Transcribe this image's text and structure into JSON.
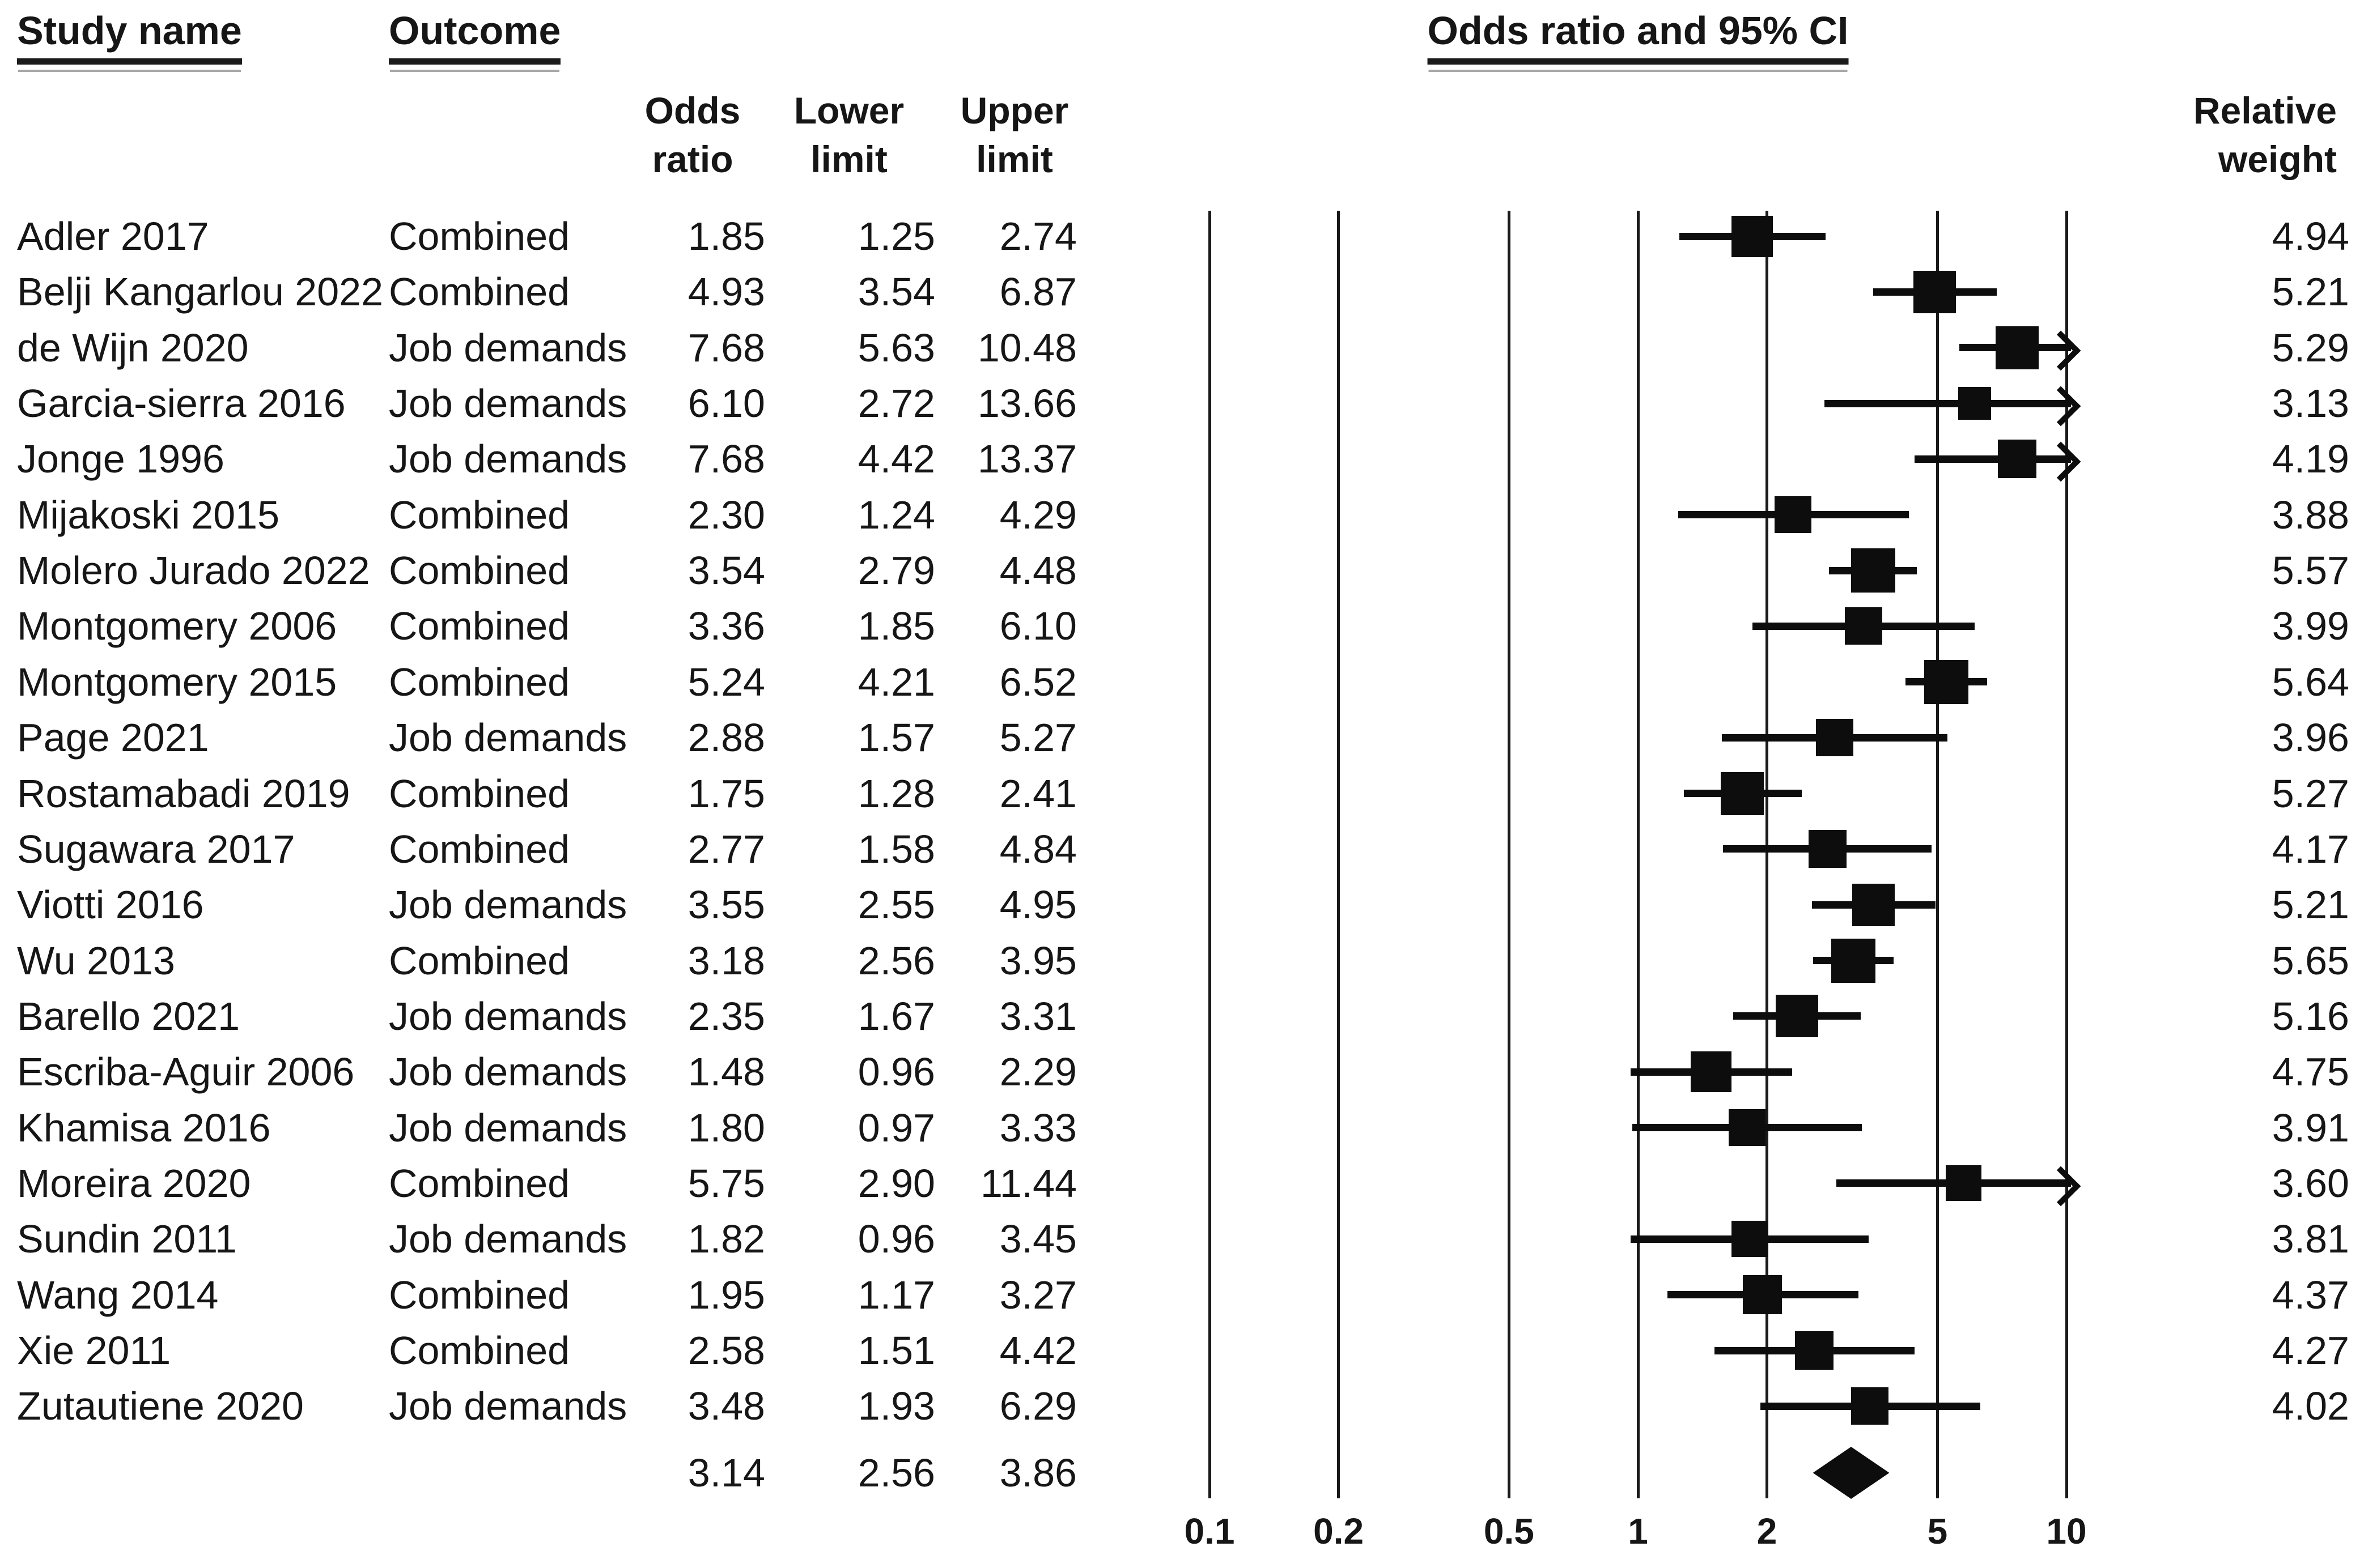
{
  "headers": {
    "study": "Study name",
    "outcome": "Outcome",
    "plot_title": "Odds ratio and 95% CI",
    "or_lines": [
      "Odds",
      "ratio"
    ],
    "lower_lines": [
      "Lower",
      "limit"
    ],
    "upper_lines": [
      "Upper",
      "limit"
    ],
    "weight_lines": [
      "Relative",
      "weight"
    ]
  },
  "colors": {
    "background": "#ffffff",
    "ink": "#161616",
    "marker": "#0d0d0d"
  },
  "chart_data": {
    "type": "scatter",
    "chart_kind": "forest-plot",
    "title": "Odds ratio and 95% CI",
    "x_scale": "log10",
    "x_range": [
      0.1,
      10
    ],
    "x_ticks": [
      "0.1",
      "0.2",
      "0.5",
      "1",
      "2",
      "5",
      "10"
    ],
    "arrow_when_upper_exceeds": 10,
    "legend_position": "none",
    "grid": "vertical-reference-lines",
    "marker_note": "black square sized by relative weight at OR, horizontal line = 95% CI, right arrow when upper limit exceeds 10, black diamond = pooled estimate",
    "columns": [
      "Study name",
      "Outcome",
      "Odds ratio",
      "Lower limit",
      "Upper limit",
      "Relative weight"
    ],
    "studies": [
      {
        "study": "Adler 2017",
        "outcome": "Combined",
        "or": "1.85",
        "lower": "1.25",
        "upper": "2.74",
        "weight": "4.94"
      },
      {
        "study": "Belji Kangarlou 2022",
        "outcome": "Combined",
        "or": "4.93",
        "lower": "3.54",
        "upper": "6.87",
        "weight": "5.21"
      },
      {
        "study": "de Wijn 2020",
        "outcome": "Job demands",
        "or": "7.68",
        "lower": "5.63",
        "upper": "10.48",
        "weight": "5.29"
      },
      {
        "study": "Garcia-sierra 2016",
        "outcome": "Job demands",
        "or": "6.10",
        "lower": "2.72",
        "upper": "13.66",
        "weight": "3.13"
      },
      {
        "study": "Jonge 1996",
        "outcome": "Job demands",
        "or": "7.68",
        "lower": "4.42",
        "upper": "13.37",
        "weight": "4.19"
      },
      {
        "study": "Mijakoski 2015",
        "outcome": "Combined",
        "or": "2.30",
        "lower": "1.24",
        "upper": "4.29",
        "weight": "3.88"
      },
      {
        "study": "Molero Jurado 2022",
        "outcome": "Combined",
        "or": "3.54",
        "lower": "2.79",
        "upper": "4.48",
        "weight": "5.57"
      },
      {
        "study": "Montgomery 2006",
        "outcome": "Combined",
        "or": "3.36",
        "lower": "1.85",
        "upper": "6.10",
        "weight": "3.99"
      },
      {
        "study": "Montgomery 2015",
        "outcome": "Combined",
        "or": "5.24",
        "lower": "4.21",
        "upper": "6.52",
        "weight": "5.64"
      },
      {
        "study": "Page 2021",
        "outcome": "Job demands",
        "or": "2.88",
        "lower": "1.57",
        "upper": "5.27",
        "weight": "3.96"
      },
      {
        "study": "Rostamabadi 2019",
        "outcome": "Combined",
        "or": "1.75",
        "lower": "1.28",
        "upper": "2.41",
        "weight": "5.27"
      },
      {
        "study": "Sugawara 2017",
        "outcome": "Combined",
        "or": "2.77",
        "lower": "1.58",
        "upper": "4.84",
        "weight": "4.17"
      },
      {
        "study": "Viotti 2016",
        "outcome": "Job demands",
        "or": "3.55",
        "lower": "2.55",
        "upper": "4.95",
        "weight": "5.21"
      },
      {
        "study": "Wu 2013",
        "outcome": "Combined",
        "or": "3.18",
        "lower": "2.56",
        "upper": "3.95",
        "weight": "5.65"
      },
      {
        "study": "Barello 2021",
        "outcome": "Job demands",
        "or": "2.35",
        "lower": "1.67",
        "upper": "3.31",
        "weight": "5.16"
      },
      {
        "study": "Escriba-Aguir 2006",
        "outcome": "Job demands",
        "or": "1.48",
        "lower": "0.96",
        "upper": "2.29",
        "weight": "4.75"
      },
      {
        "study": "Khamisa 2016",
        "outcome": "Job demands",
        "or": "1.80",
        "lower": "0.97",
        "upper": "3.33",
        "weight": "3.91"
      },
      {
        "study": "Moreira 2020",
        "outcome": "Combined",
        "or": "5.75",
        "lower": "2.90",
        "upper": "11.44",
        "weight": "3.60"
      },
      {
        "study": "Sundin 2011",
        "outcome": "Job demands",
        "or": "1.82",
        "lower": "0.96",
        "upper": "3.45",
        "weight": "3.81"
      },
      {
        "study": "Wang 2014",
        "outcome": "Combined",
        "or": "1.95",
        "lower": "1.17",
        "upper": "3.27",
        "weight": "4.37"
      },
      {
        "study": "Xie  2011",
        "outcome": "Combined",
        "or": "2.58",
        "lower": "1.51",
        "upper": "4.42",
        "weight": "4.27"
      },
      {
        "study": "Zutautiene 2020",
        "outcome": "Job demands",
        "or": "3.48",
        "lower": "1.93",
        "upper": "6.29",
        "weight": "4.02"
      }
    ],
    "summary": {
      "or": "3.14",
      "lower": "2.56",
      "upper": "3.86"
    }
  }
}
